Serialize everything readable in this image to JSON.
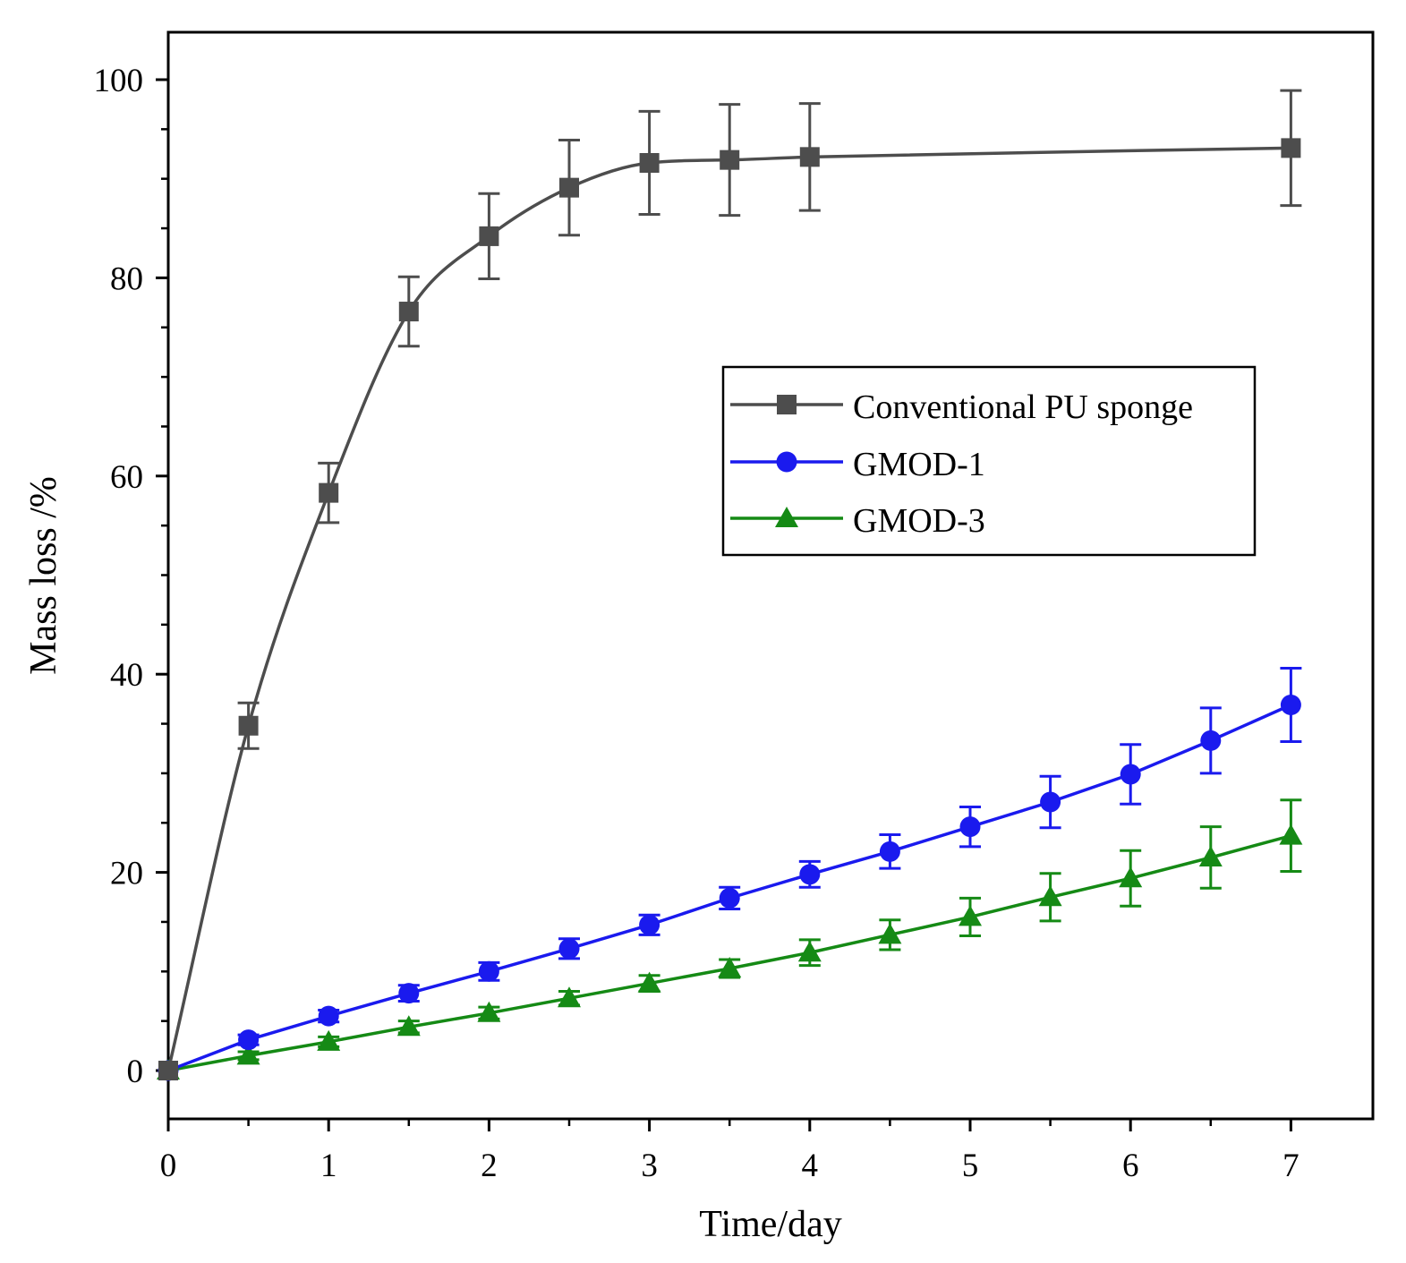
{
  "chart_data": {
    "type": "line",
    "title": "",
    "xlabel": "Time/day",
    "ylabel": "Mass loss /%",
    "xlim": [
      0,
      7.5
    ],
    "ylim": [
      -5,
      105
    ],
    "xticks": [
      0,
      1,
      2,
      3,
      4,
      5,
      6,
      7
    ],
    "yticks": [
      0,
      20,
      40,
      60,
      80,
      100
    ],
    "grid": false,
    "legend_position": "right-middle",
    "series": [
      {
        "name": "Conventional PU sponge",
        "color": "#4d4d4d",
        "marker": "square",
        "smooth": true,
        "x": [
          0,
          0.5,
          1,
          1.5,
          2,
          2.5,
          3,
          3.5,
          4,
          7
        ],
        "y": [
          0,
          34.8,
          58.3,
          76.6,
          84.2,
          89.1,
          91.6,
          91.9,
          92.2,
          93.1
        ],
        "err": [
          0,
          2.3,
          3.0,
          3.5,
          4.3,
          4.8,
          5.2,
          5.6,
          5.4,
          5.8
        ]
      },
      {
        "name": "GMOD-1",
        "color": "#1a1aee",
        "marker": "circle",
        "smooth": false,
        "x": [
          0,
          0.5,
          1,
          1.5,
          2,
          2.5,
          3,
          3.5,
          4,
          4.5,
          5,
          5.5,
          6,
          6.5,
          7
        ],
        "y": [
          0,
          3.1,
          5.5,
          7.8,
          10.0,
          12.3,
          14.7,
          17.4,
          19.8,
          22.1,
          24.6,
          27.1,
          29.9,
          33.3,
          36.9
        ],
        "err": [
          0,
          0.5,
          0.6,
          0.8,
          0.9,
          1.0,
          1.0,
          1.1,
          1.3,
          1.7,
          2.0,
          2.6,
          3.0,
          3.3,
          3.7
        ]
      },
      {
        "name": "GMOD-3",
        "color": "#158a15",
        "marker": "triangle",
        "smooth": false,
        "x": [
          0,
          0.5,
          1,
          1.5,
          2,
          2.5,
          3,
          3.5,
          4,
          4.5,
          5,
          5.5,
          6,
          6.5,
          7
        ],
        "y": [
          0,
          1.5,
          2.9,
          4.4,
          5.8,
          7.3,
          8.8,
          10.3,
          11.9,
          13.7,
          15.5,
          17.5,
          19.4,
          21.5,
          23.7
        ],
        "err": [
          0,
          0.4,
          0.5,
          0.6,
          0.6,
          0.7,
          0.8,
          0.9,
          1.3,
          1.5,
          1.9,
          2.4,
          2.8,
          3.1,
          3.6
        ]
      }
    ]
  }
}
